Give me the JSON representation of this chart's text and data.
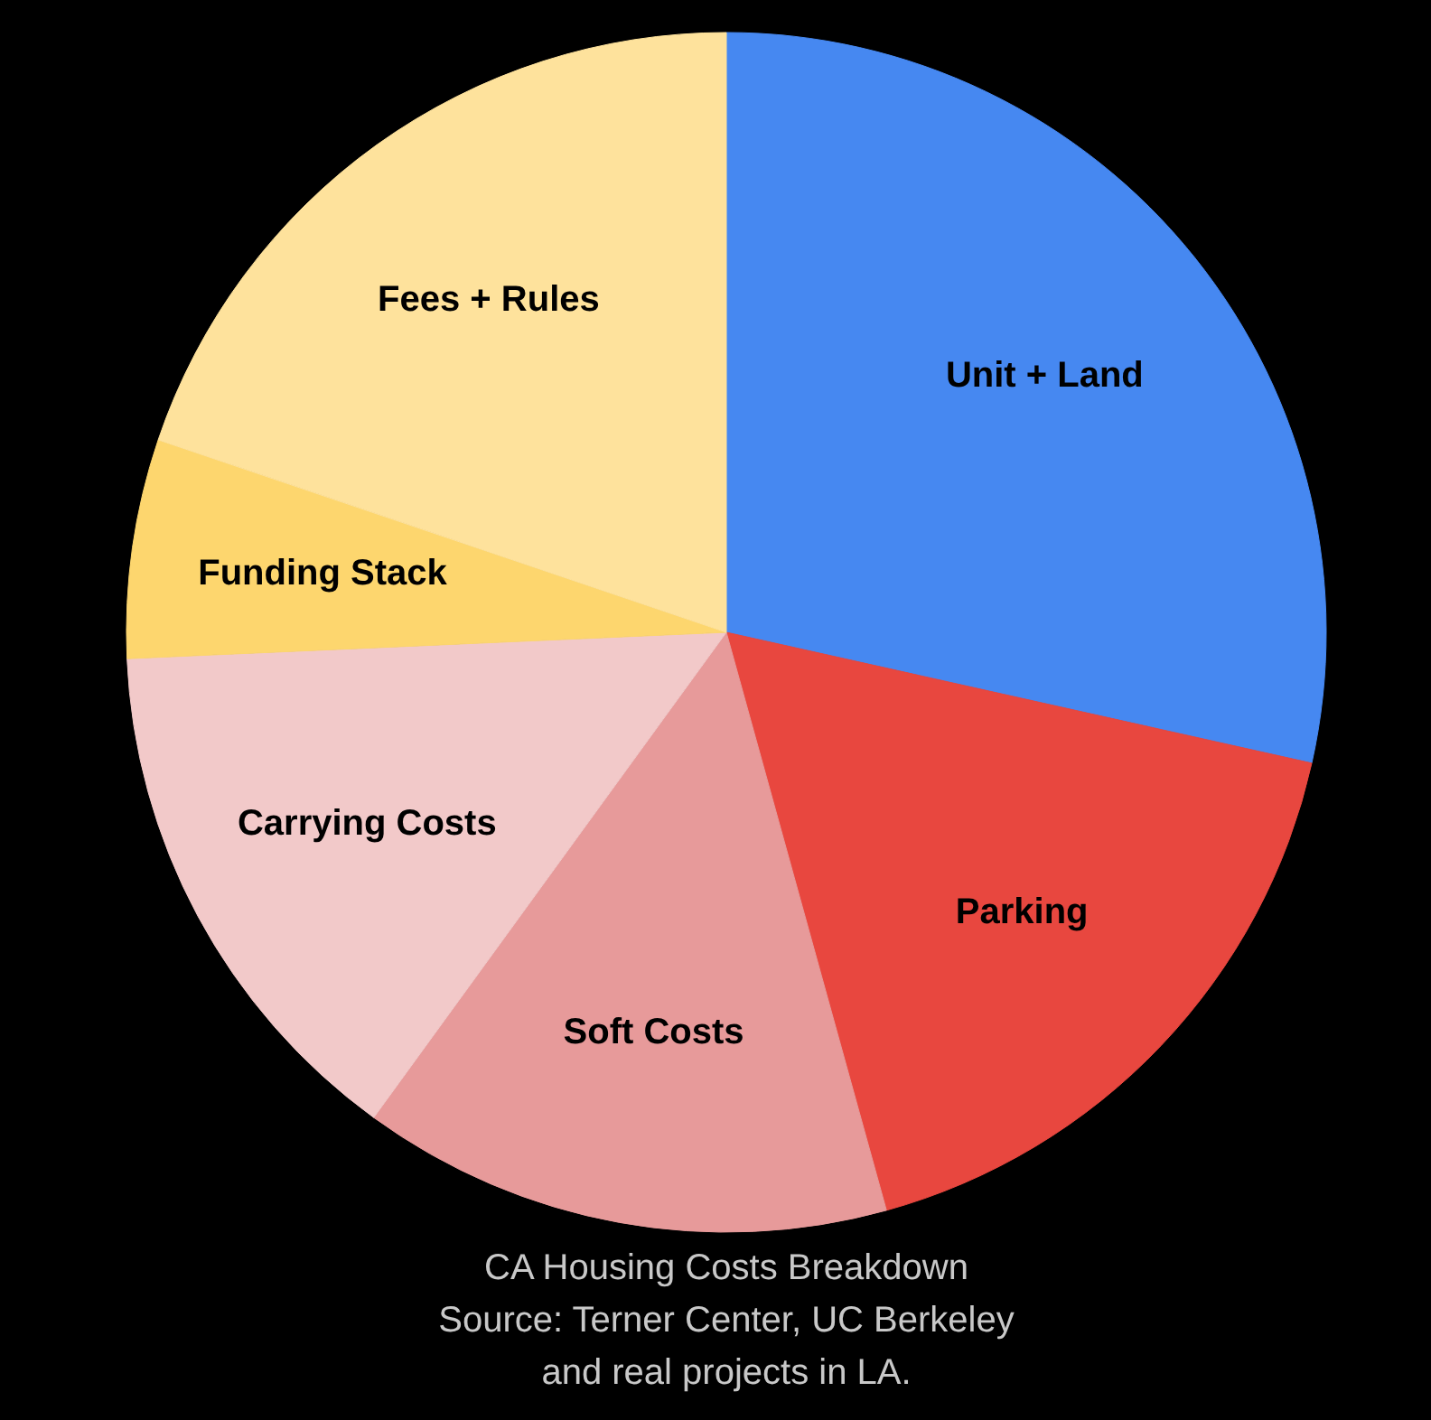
{
  "chart_data": {
    "type": "pie",
    "title": "CA Housing Costs Breakdown",
    "categories": [
      "Unit + Land",
      "Parking",
      "Soft Costs",
      "Carrying Costs",
      "Funding Stack",
      "Fees + Rules"
    ],
    "values": [
      28.5,
      17.2,
      14.3,
      14.3,
      5.9,
      19.8
    ],
    "colors": [
      "#4688f1",
      "#e8473f",
      "#e79a9a",
      "#f2c9c9",
      "#fdd66e",
      "#fee29c"
    ],
    "annotations": [
      "Source: Terner Center, UC Berkeley",
      "and real projects in LA."
    ],
    "legend": false
  }
}
